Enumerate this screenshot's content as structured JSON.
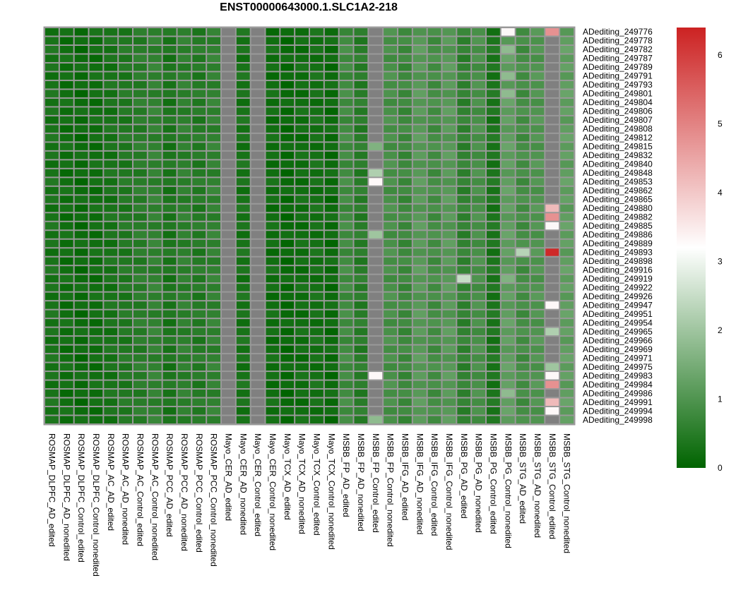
{
  "chart_data": {
    "type": "heatmap",
    "title": "ENST00000643000.1.SLC1A2-218",
    "colorbar": {
      "range": [
        0,
        6.4
      ],
      "ticks": [
        0,
        1,
        2,
        3,
        4,
        5,
        6
      ],
      "low_color": "#006400",
      "mid_color": "#ffffff",
      "high_color": "#cc2222",
      "mid_value": 3.2
    },
    "na_color": "#808080",
    "border_color": "#999999",
    "columns": [
      "ROSMAP_DLPFC_AD_edited",
      "ROSMAP_DLPFC_AD_nonedited",
      "ROSMAP_DLPFC_Control_edited",
      "ROSMAP_DLPFC_Control_nonedited",
      "ROSMAP_AC_AD_edited",
      "ROSMAP_AC_AD_nonedited",
      "ROSMAP_AC_Control_edited",
      "ROSMAP_AC_Control_nonedited",
      "ROSMAP_PCC_AD_edited",
      "ROSMAP_PCC_AD_nonedited",
      "ROSMAP_PCC_Control_edited",
      "ROSMAP_PCC_Control_nonedited",
      "Mayo_CER_AD_edited",
      "Mayo_CER_AD_nonedited",
      "Mayo_CER_Control_edited",
      "Mayo_CER_Control_nonedited",
      "Mayo_TCX_AD_edited",
      "Mayo_TCX_AD_nonedited",
      "Mayo_TCX_Control_edited",
      "Mayo_TCX_Control_nonedited",
      "MSBB_FP_AD_edited",
      "MSBB_FP_AD_nonedited",
      "MSBB_FP_Control_edited",
      "MSBB_FP_Control_nonedited",
      "MSBB_IFG_AD_edited",
      "MSBB_IFG_AD_nonedited",
      "MSBB_IFG_Control_edited",
      "MSBB_IFG_Control_nonedited",
      "MSBB_PG_AD_edited",
      "MSBB_PG_AD_nonedited",
      "MSBB_PG_Control_edited",
      "MSBB_PG_Control_nonedited",
      "MSBB_STG_AD_edited",
      "MSBB_STG_AD_nonedited",
      "MSBB_STG_Control_edited",
      "MSBB_STG_Control_nonedited"
    ],
    "rows": [
      "ADediting_249776",
      "ADediting_249778",
      "ADediting_249782",
      "ADediting_249787",
      "ADediting_249789",
      "ADediting_249791",
      "ADediting_249793",
      "ADediting_249801",
      "ADediting_249804",
      "ADediting_249806",
      "ADediting_249807",
      "ADediting_249808",
      "ADediting_249812",
      "ADediting_249815",
      "ADediting_249832",
      "ADediting_249840",
      "ADediting_249848",
      "ADediting_249853",
      "ADediting_249862",
      "ADediting_249865",
      "ADediting_249880",
      "ADediting_249882",
      "ADediting_249885",
      "ADediting_249886",
      "ADediting_249889",
      "ADediting_249893",
      "ADediting_249898",
      "ADediting_249916",
      "ADediting_249919",
      "ADediting_249922",
      "ADediting_249926",
      "ADediting_249947",
      "ADediting_249951",
      "ADediting_249954",
      "ADediting_249965",
      "ADediting_249966",
      "ADediting_249969",
      "ADediting_249971",
      "ADediting_249975",
      "ADediting_249983",
      "ADediting_249984",
      "ADediting_249986",
      "ADediting_249991",
      "ADediting_249994",
      "ADediting_249998"
    ],
    "default_col_values": [
      0.3,
      0.2,
      0.15,
      0.2,
      0.3,
      0.4,
      0.5,
      0.6,
      0.35,
      0.55,
      0.45,
      0.6,
      null,
      0.3,
      null,
      0.2,
      0.1,
      0.2,
      0.25,
      0.15,
      0.8,
      0.5,
      null,
      0.9,
      0.75,
      1.1,
      0.85,
      1.1,
      0.6,
      0.9,
      0.35,
      1.2,
      0.85,
      1.0,
      null,
      1.2
    ],
    "overrides": [
      {
        "r": 0,
        "c": 31,
        "v": 3.3
      },
      {
        "r": 0,
        "c": 34,
        "v": 4.8
      },
      {
        "r": 2,
        "c": 31,
        "v": 1.8
      },
      {
        "r": 5,
        "c": 31,
        "v": 1.8
      },
      {
        "r": 7,
        "c": 31,
        "v": 1.8
      },
      {
        "r": 13,
        "c": 22,
        "v": 1.6
      },
      {
        "r": 16,
        "c": 22,
        "v": 2.2
      },
      {
        "r": 17,
        "c": 22,
        "v": 3.3
      },
      {
        "r": 20,
        "c": 34,
        "v": 4.2
      },
      {
        "r": 21,
        "c": 34,
        "v": 4.8
      },
      {
        "r": 22,
        "c": 34,
        "v": 3.3
      },
      {
        "r": 23,
        "c": 22,
        "v": 2.0
      },
      {
        "r": 25,
        "c": 32,
        "v": 2.3
      },
      {
        "r": 25,
        "c": 34,
        "v": 6.3
      },
      {
        "r": 28,
        "c": 28,
        "v": 2.5
      },
      {
        "r": 28,
        "c": 31,
        "v": 1.6
      },
      {
        "r": 31,
        "c": 34,
        "v": 3.3
      },
      {
        "r": 34,
        "c": 34,
        "v": 2.2
      },
      {
        "r": 38,
        "c": 34,
        "v": 2.0
      },
      {
        "r": 39,
        "c": 22,
        "v": 3.3
      },
      {
        "r": 39,
        "c": 34,
        "v": 3.3
      },
      {
        "r": 40,
        "c": 34,
        "v": 4.8
      },
      {
        "r": 41,
        "c": 31,
        "v": 1.8
      },
      {
        "r": 42,
        "c": 34,
        "v": 4.2
      },
      {
        "r": 43,
        "c": 34,
        "v": 3.3
      },
      {
        "r": 44,
        "c": 22,
        "v": 1.8
      }
    ]
  }
}
